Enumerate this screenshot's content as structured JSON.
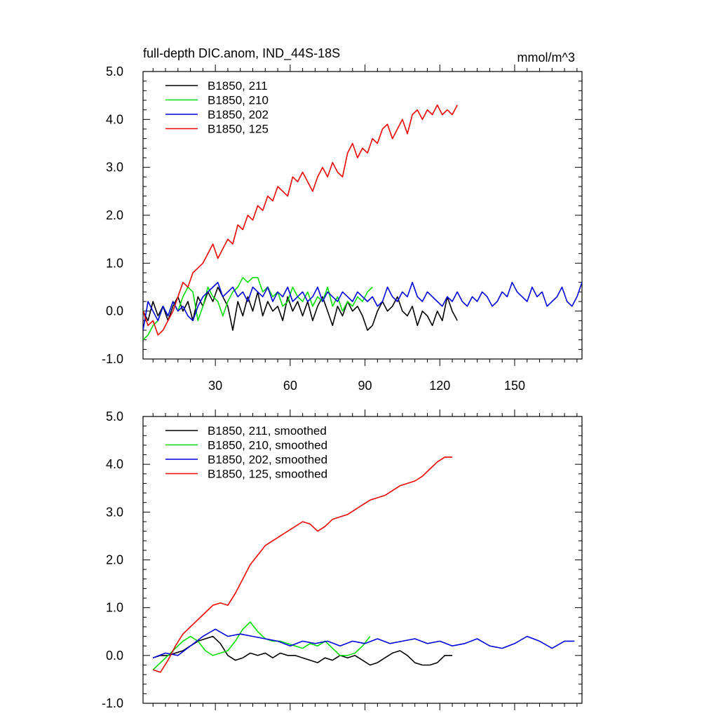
{
  "chart_data": [
    {
      "type": "line",
      "title": "full-depth DIC.anom, IND_44S-18S",
      "units": "mmol/m^3",
      "xlim": [
        1,
        177
      ],
      "ylim": [
        -1.0,
        5.0
      ],
      "x_ticks": [
        30,
        60,
        90,
        120,
        150
      ],
      "x_tick_labels": [
        "30",
        "60",
        "90",
        "120",
        "150"
      ],
      "y_ticks": [
        -1.0,
        0.0,
        1.0,
        2.0,
        3.0,
        4.0,
        5.0
      ],
      "y_tick_labels": [
        "-1.0",
        "0.0",
        "1.0",
        "2.0",
        "3.0",
        "4.0",
        "5.0"
      ],
      "legend_position": "top-left",
      "series": [
        {
          "name": "B1850, 211",
          "color": "#000000",
          "x": [
            1,
            3,
            5,
            7,
            9,
            11,
            13,
            15,
            17,
            19,
            21,
            23,
            25,
            27,
            29,
            31,
            33,
            35,
            37,
            39,
            41,
            43,
            45,
            47,
            49,
            51,
            53,
            55,
            57,
            59,
            61,
            63,
            65,
            67,
            69,
            71,
            73,
            75,
            77,
            79,
            81,
            83,
            85,
            87,
            89,
            91,
            93,
            95,
            97,
            99,
            101,
            103,
            105,
            107,
            109,
            111,
            113,
            115,
            117,
            119,
            121,
            123,
            125,
            127
          ],
          "values": [
            0.0,
            -0.2,
            0.2,
            -0.1,
            0.1,
            -0.2,
            0.1,
            0.3,
            0.0,
            0.2,
            -0.2,
            0.3,
            0.1,
            0.4,
            0.2,
            0.5,
            0.3,
            0.1,
            -0.4,
            0.2,
            -0.1,
            0.3,
            0.0,
            0.4,
            -0.1,
            0.2,
            0.0,
            0.1,
            -0.2,
            0.3,
            0.0,
            0.2,
            -0.1,
            0.2,
            -0.2,
            0.1,
            0.3,
            0.0,
            -0.3,
            0.1,
            -0.1,
            0.2,
            0.0,
            0.1,
            -0.1,
            -0.4,
            -0.3,
            0.0,
            0.2,
            0.0,
            0.1,
            0.3,
            0.0,
            -0.1,
            0.1,
            -0.3,
            0.0,
            -0.1,
            -0.3,
            0.0,
            -0.2,
            0.3,
            0.0,
            -0.2
          ]
        },
        {
          "name": "B1850, 210",
          "color": "#00dd00",
          "x": [
            1,
            3,
            5,
            7,
            9,
            11,
            13,
            15,
            17,
            19,
            21,
            23,
            25,
            27,
            29,
            31,
            33,
            35,
            37,
            39,
            41,
            43,
            45,
            47,
            49,
            51,
            53,
            55,
            57,
            59,
            61,
            63,
            65,
            67,
            69,
            71,
            73,
            75,
            77,
            79,
            81,
            83,
            85,
            87,
            89,
            91,
            93
          ],
          "values": [
            -0.6,
            -0.5,
            -0.3,
            -0.2,
            0.1,
            -0.1,
            0.2,
            0.0,
            0.3,
            0.5,
            0.4,
            -0.2,
            0.1,
            0.5,
            0.3,
            0.2,
            -0.1,
            0.2,
            0.4,
            0.5,
            0.7,
            0.6,
            0.7,
            0.7,
            0.4,
            0.5,
            0.3,
            0.4,
            0.1,
            0.2,
            0.5,
            0.3,
            0.2,
            0.4,
            0.1,
            0.3,
            0.2,
            0.5,
            0.1,
            0.3,
            0.0,
            0.2,
            0.1,
            0.3,
            0.2,
            0.4,
            0.5
          ]
        },
        {
          "name": "B1850, 202",
          "color": "#0000dd",
          "x": [
            1,
            3,
            5,
            7,
            9,
            11,
            13,
            15,
            17,
            19,
            21,
            23,
            25,
            27,
            29,
            31,
            33,
            35,
            37,
            39,
            41,
            43,
            45,
            47,
            49,
            51,
            53,
            55,
            57,
            59,
            61,
            63,
            65,
            67,
            69,
            71,
            73,
            75,
            77,
            79,
            81,
            83,
            85,
            87,
            89,
            91,
            93,
            95,
            97,
            99,
            101,
            103,
            105,
            107,
            109,
            111,
            113,
            115,
            117,
            119,
            121,
            123,
            125,
            127,
            129,
            131,
            133,
            135,
            137,
            139,
            141,
            143,
            145,
            147,
            149,
            151,
            153,
            155,
            157,
            159,
            161,
            163,
            165,
            167,
            169,
            171,
            173,
            175,
            177
          ],
          "values": [
            -0.4,
            0.2,
            0.0,
            -0.2,
            0.1,
            -0.1,
            0.2,
            0.0,
            0.1,
            -0.1,
            -0.2,
            0.1,
            0.3,
            0.4,
            0.5,
            0.6,
            0.3,
            0.4,
            0.5,
            0.3,
            0.4,
            0.2,
            0.5,
            0.4,
            0.3,
            0.5,
            0.2,
            0.4,
            0.3,
            0.5,
            0.2,
            0.3,
            0.4,
            0.2,
            0.3,
            0.5,
            0.2,
            0.4,
            0.3,
            0.2,
            0.4,
            0.3,
            0.2,
            0.4,
            0.3,
            0.2,
            0.3,
            0.1,
            0.2,
            0.5,
            0.3,
            0.2,
            0.4,
            0.3,
            0.6,
            0.3,
            0.2,
            0.4,
            0.3,
            0.2,
            0.1,
            0.3,
            0.2,
            0.4,
            0.2,
            0.1,
            0.3,
            0.2,
            0.4,
            0.3,
            0.1,
            0.2,
            0.4,
            0.3,
            0.6,
            0.4,
            0.3,
            0.2,
            0.5,
            0.3,
            0.4,
            0.1,
            0.2,
            0.3,
            0.5,
            0.2,
            0.1,
            0.3,
            0.6
          ]
        },
        {
          "name": "B1850, 125",
          "color": "#ee0000",
          "x": [
            1,
            3,
            5,
            7,
            9,
            11,
            13,
            15,
            17,
            19,
            21,
            23,
            25,
            27,
            29,
            31,
            33,
            35,
            37,
            39,
            41,
            43,
            45,
            47,
            49,
            51,
            53,
            55,
            57,
            59,
            61,
            63,
            65,
            67,
            69,
            71,
            73,
            75,
            77,
            79,
            81,
            83,
            85,
            87,
            89,
            91,
            93,
            95,
            97,
            99,
            101,
            103,
            105,
            107,
            109,
            111,
            113,
            115,
            117,
            119,
            121,
            123,
            125,
            127
          ],
          "values": [
            0.0,
            -0.3,
            -0.2,
            -0.5,
            -0.4,
            -0.2,
            0.0,
            0.3,
            0.6,
            0.5,
            0.8,
            0.9,
            1.0,
            1.2,
            1.4,
            1.1,
            1.3,
            1.5,
            1.4,
            1.8,
            1.7,
            2.0,
            1.9,
            2.2,
            2.1,
            2.4,
            2.3,
            2.6,
            2.5,
            2.4,
            2.8,
            2.7,
            2.9,
            2.7,
            2.5,
            2.8,
            3.0,
            2.8,
            3.1,
            2.9,
            2.8,
            3.3,
            3.5,
            3.2,
            3.4,
            3.3,
            3.6,
            3.5,
            3.8,
            3.9,
            3.6,
            3.8,
            4.0,
            3.7,
            4.1,
            4.2,
            4.0,
            4.2,
            4.1,
            4.3,
            4.1,
            4.2,
            4.1,
            4.3
          ]
        }
      ]
    },
    {
      "type": "line",
      "title": "",
      "xlim": [
        1,
        177
      ],
      "ylim": [
        -1.0,
        5.0
      ],
      "x_ticks": [
        30,
        60,
        90,
        120,
        150
      ],
      "y_ticks": [
        -1.0,
        0.0,
        1.0,
        2.0,
        3.0,
        4.0,
        5.0
      ],
      "y_tick_labels": [
        "-1.0",
        "0.0",
        "1.0",
        "2.0",
        "3.0",
        "4.0",
        "5.0"
      ],
      "legend_position": "top-left",
      "series": [
        {
          "name": "B1850, 211, smoothed",
          "color": "#000000",
          "x": [
            5,
            8,
            11,
            14,
            17,
            20,
            23,
            26,
            29,
            32,
            35,
            38,
            41,
            44,
            47,
            50,
            53,
            56,
            59,
            62,
            65,
            68,
            71,
            74,
            77,
            80,
            83,
            86,
            89,
            92,
            95,
            98,
            101,
            104,
            107,
            110,
            113,
            116,
            119,
            122,
            125
          ],
          "values": [
            -0.05,
            0.0,
            0.0,
            0.05,
            0.1,
            0.2,
            0.3,
            0.35,
            0.4,
            0.25,
            0.0,
            -0.1,
            -0.05,
            0.05,
            0.0,
            0.05,
            -0.05,
            0.05,
            0.0,
            0.0,
            -0.05,
            -0.1,
            -0.15,
            -0.05,
            -0.1,
            0.0,
            -0.05,
            0.0,
            -0.1,
            -0.2,
            -0.15,
            -0.05,
            0.05,
            0.1,
            0.0,
            -0.15,
            -0.2,
            -0.2,
            -0.15,
            0.0,
            0.0
          ]
        },
        {
          "name": "B1850, 210, smoothed",
          "color": "#00dd00",
          "x": [
            5,
            8,
            11,
            14,
            17,
            20,
            23,
            26,
            29,
            32,
            35,
            38,
            41,
            44,
            47,
            50,
            53,
            56,
            59,
            62,
            65,
            68,
            71,
            74,
            77,
            80,
            83,
            86,
            89,
            92
          ],
          "values": [
            -0.3,
            -0.15,
            0.0,
            0.15,
            0.3,
            0.4,
            0.3,
            0.1,
            0.0,
            0.05,
            0.1,
            0.3,
            0.55,
            0.7,
            0.5,
            0.35,
            0.3,
            0.3,
            0.25,
            0.2,
            0.15,
            0.25,
            0.2,
            0.3,
            0.15,
            0.0,
            0.0,
            0.05,
            0.2,
            0.4
          ]
        },
        {
          "name": "B1850, 202, smoothed",
          "color": "#0000dd",
          "x": [
            5,
            10,
            15,
            20,
            25,
            30,
            35,
            40,
            45,
            50,
            55,
            60,
            65,
            70,
            75,
            80,
            85,
            90,
            95,
            100,
            105,
            110,
            115,
            120,
            125,
            130,
            135,
            140,
            145,
            150,
            155,
            160,
            165,
            170,
            174
          ],
          "values": [
            -0.05,
            0.05,
            0.0,
            0.2,
            0.4,
            0.55,
            0.4,
            0.45,
            0.4,
            0.35,
            0.3,
            0.2,
            0.3,
            0.25,
            0.3,
            0.2,
            0.3,
            0.25,
            0.35,
            0.25,
            0.3,
            0.35,
            0.25,
            0.3,
            0.2,
            0.25,
            0.35,
            0.2,
            0.15,
            0.25,
            0.4,
            0.3,
            0.15,
            0.3,
            0.3
          ]
        },
        {
          "name": "B1850, 125, smoothed",
          "color": "#ee0000",
          "x": [
            5,
            8,
            11,
            14,
            17,
            20,
            23,
            26,
            29,
            32,
            35,
            38,
            41,
            44,
            47,
            50,
            53,
            56,
            59,
            62,
            65,
            68,
            71,
            74,
            77,
            80,
            83,
            86,
            89,
            92,
            95,
            98,
            101,
            104,
            107,
            110,
            113,
            116,
            119,
            122,
            125
          ],
          "values": [
            -0.3,
            -0.35,
            -0.1,
            0.2,
            0.45,
            0.6,
            0.75,
            0.9,
            1.05,
            1.1,
            1.05,
            1.3,
            1.6,
            1.9,
            2.1,
            2.3,
            2.4,
            2.5,
            2.6,
            2.7,
            2.8,
            2.75,
            2.6,
            2.7,
            2.85,
            2.9,
            2.95,
            3.05,
            3.15,
            3.25,
            3.3,
            3.35,
            3.45,
            3.55,
            3.6,
            3.65,
            3.75,
            3.9,
            4.05,
            4.15,
            4.15
          ]
        }
      ]
    }
  ]
}
